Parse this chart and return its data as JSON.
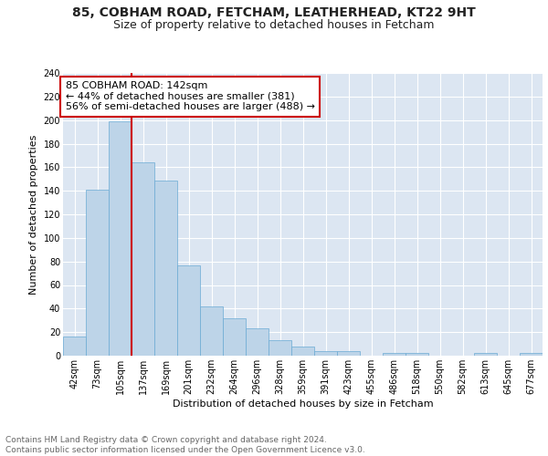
{
  "title_line1": "85, COBHAM ROAD, FETCHAM, LEATHERHEAD, KT22 9HT",
  "title_line2": "Size of property relative to detached houses in Fetcham",
  "xlabel": "Distribution of detached houses by size in Fetcham",
  "ylabel": "Number of detached properties",
  "categories": [
    "42sqm",
    "73sqm",
    "105sqm",
    "137sqm",
    "169sqm",
    "201sqm",
    "232sqm",
    "264sqm",
    "296sqm",
    "328sqm",
    "359sqm",
    "391sqm",
    "423sqm",
    "455sqm",
    "486sqm",
    "518sqm",
    "550sqm",
    "582sqm",
    "613sqm",
    "645sqm",
    "677sqm"
  ],
  "values": [
    16,
    141,
    199,
    164,
    149,
    77,
    42,
    32,
    23,
    13,
    8,
    4,
    4,
    0,
    2,
    2,
    0,
    0,
    2,
    0,
    2
  ],
  "bar_color": "#bdd4e8",
  "bar_edge_color": "#6aaad4",
  "vline_color": "#cc0000",
  "annotation_text": "85 COBHAM ROAD: 142sqm\n← 44% of detached houses are smaller (381)\n56% of semi-detached houses are larger (488) →",
  "annotation_box_color": "#ffffff",
  "annotation_box_edge_color": "#cc0000",
  "ylim": [
    0,
    240
  ],
  "yticks": [
    0,
    20,
    40,
    60,
    80,
    100,
    120,
    140,
    160,
    180,
    200,
    220,
    240
  ],
  "background_color": "#dce6f2",
  "grid_color": "#ffffff",
  "fig_background": "#ffffff",
  "footer_text": "Contains HM Land Registry data © Crown copyright and database right 2024.\nContains public sector information licensed under the Open Government Licence v3.0.",
  "title_fontsize": 10,
  "subtitle_fontsize": 9,
  "axis_label_fontsize": 8,
  "tick_fontsize": 7,
  "annotation_fontsize": 8,
  "footer_fontsize": 6.5
}
